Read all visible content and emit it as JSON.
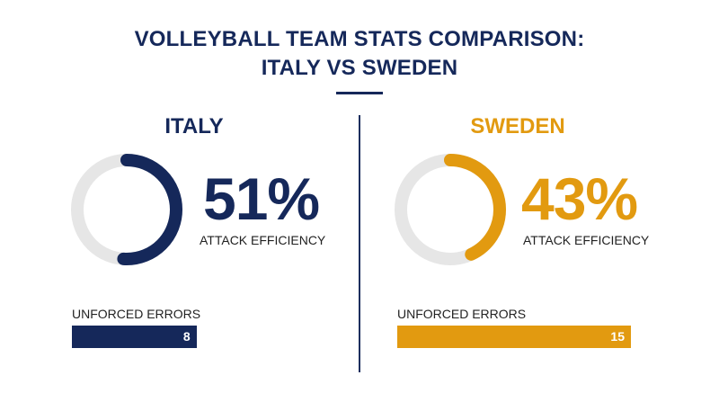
{
  "title_line1": "VOLLEYBALL TEAM STATS COMPARISON:",
  "title_line2": "ITALY VS SWEDEN",
  "colors": {
    "italy": "#15285a",
    "sweden": "#e29a10",
    "track": "#e6e6e6"
  },
  "chart_data": {
    "type": "comparison",
    "teams": [
      {
        "name": "ITALY",
        "attack_efficiency": 51,
        "attack_efficiency_label": "51%",
        "metric_label": "ATTACK EFFICIENCY",
        "errors_label": "UNFORCED ERRORS",
        "unforced_errors": 8,
        "unforced_errors_label": "8"
      },
      {
        "name": "SWEDEN",
        "attack_efficiency": 43,
        "attack_efficiency_label": "43%",
        "metric_label": "ATTACK EFFICIENCY",
        "errors_label": "UNFORCED ERRORS",
        "unforced_errors": 15,
        "unforced_errors_label": "15"
      }
    ]
  }
}
